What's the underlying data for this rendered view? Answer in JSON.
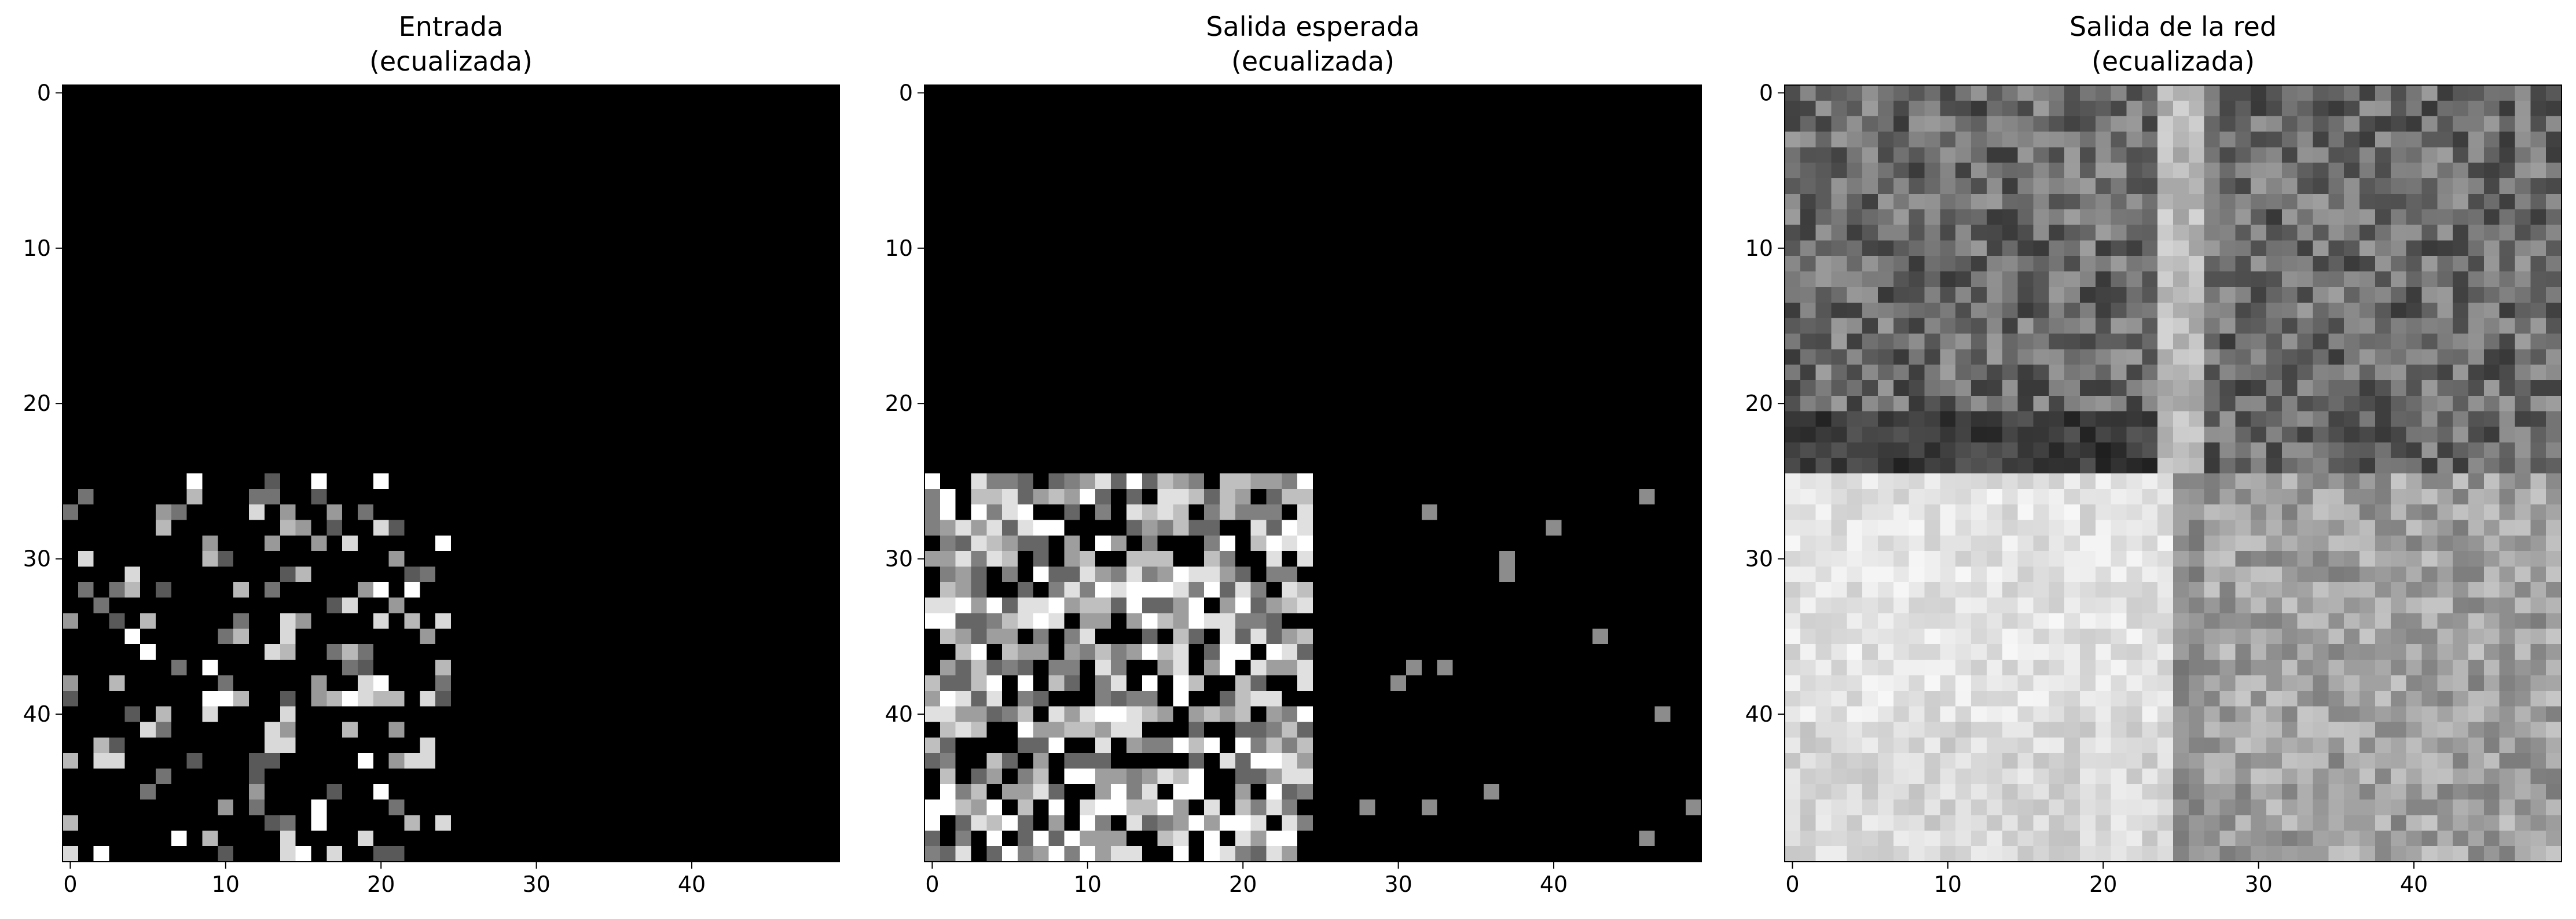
{
  "chart_data": [
    {
      "type": "heatmap",
      "colormap": "gray",
      "title_lines": [
        "Entrada",
        "(ecualizada)"
      ],
      "grid_size": [
        50,
        50
      ],
      "xlim": [
        -0.5,
        49.5
      ],
      "ylim": [
        49.5,
        -0.5
      ],
      "x_ticks": [
        0,
        10,
        20,
        30,
        40
      ],
      "y_ticks": [
        0,
        10,
        20,
        30,
        40
      ],
      "grid": false,
      "pattern": "sparse bright pixels on black, only in rows 25-49 and columns 0-24; rest black"
    },
    {
      "type": "heatmap",
      "colormap": "gray",
      "title_lines": [
        "Salida esperada",
        "(ecualizada)"
      ],
      "grid_size": [
        50,
        50
      ],
      "xlim": [
        -0.5,
        49.5
      ],
      "ylim": [
        49.5,
        -0.5
      ],
      "x_ticks": [
        0,
        10,
        20,
        30,
        40
      ],
      "y_ticks": [
        0,
        10,
        20,
        30,
        40
      ],
      "grid": false,
      "pattern": "dense noisy gray texture in rows 25-49 and columns 0-24; a few isolated gray pixels in the lower right; rest black"
    },
    {
      "type": "heatmap",
      "colormap": "gray",
      "title_lines": [
        "Salida de la red",
        "(ecualizada)"
      ],
      "grid_size": [
        50,
        50
      ],
      "xlim": [
        -0.5,
        49.5
      ],
      "ylim": [
        49.5,
        -0.5
      ],
      "x_ticks": [
        0,
        10,
        20,
        30,
        40
      ],
      "y_ticks": [
        0,
        10,
        20,
        30,
        40
      ],
      "grid": false,
      "pattern": "dark gray mottled top (rows 0-24), light gray bottom (rows 25-49) brightest at lower left, bright vertical stripe near column 25 in the top half"
    }
  ]
}
